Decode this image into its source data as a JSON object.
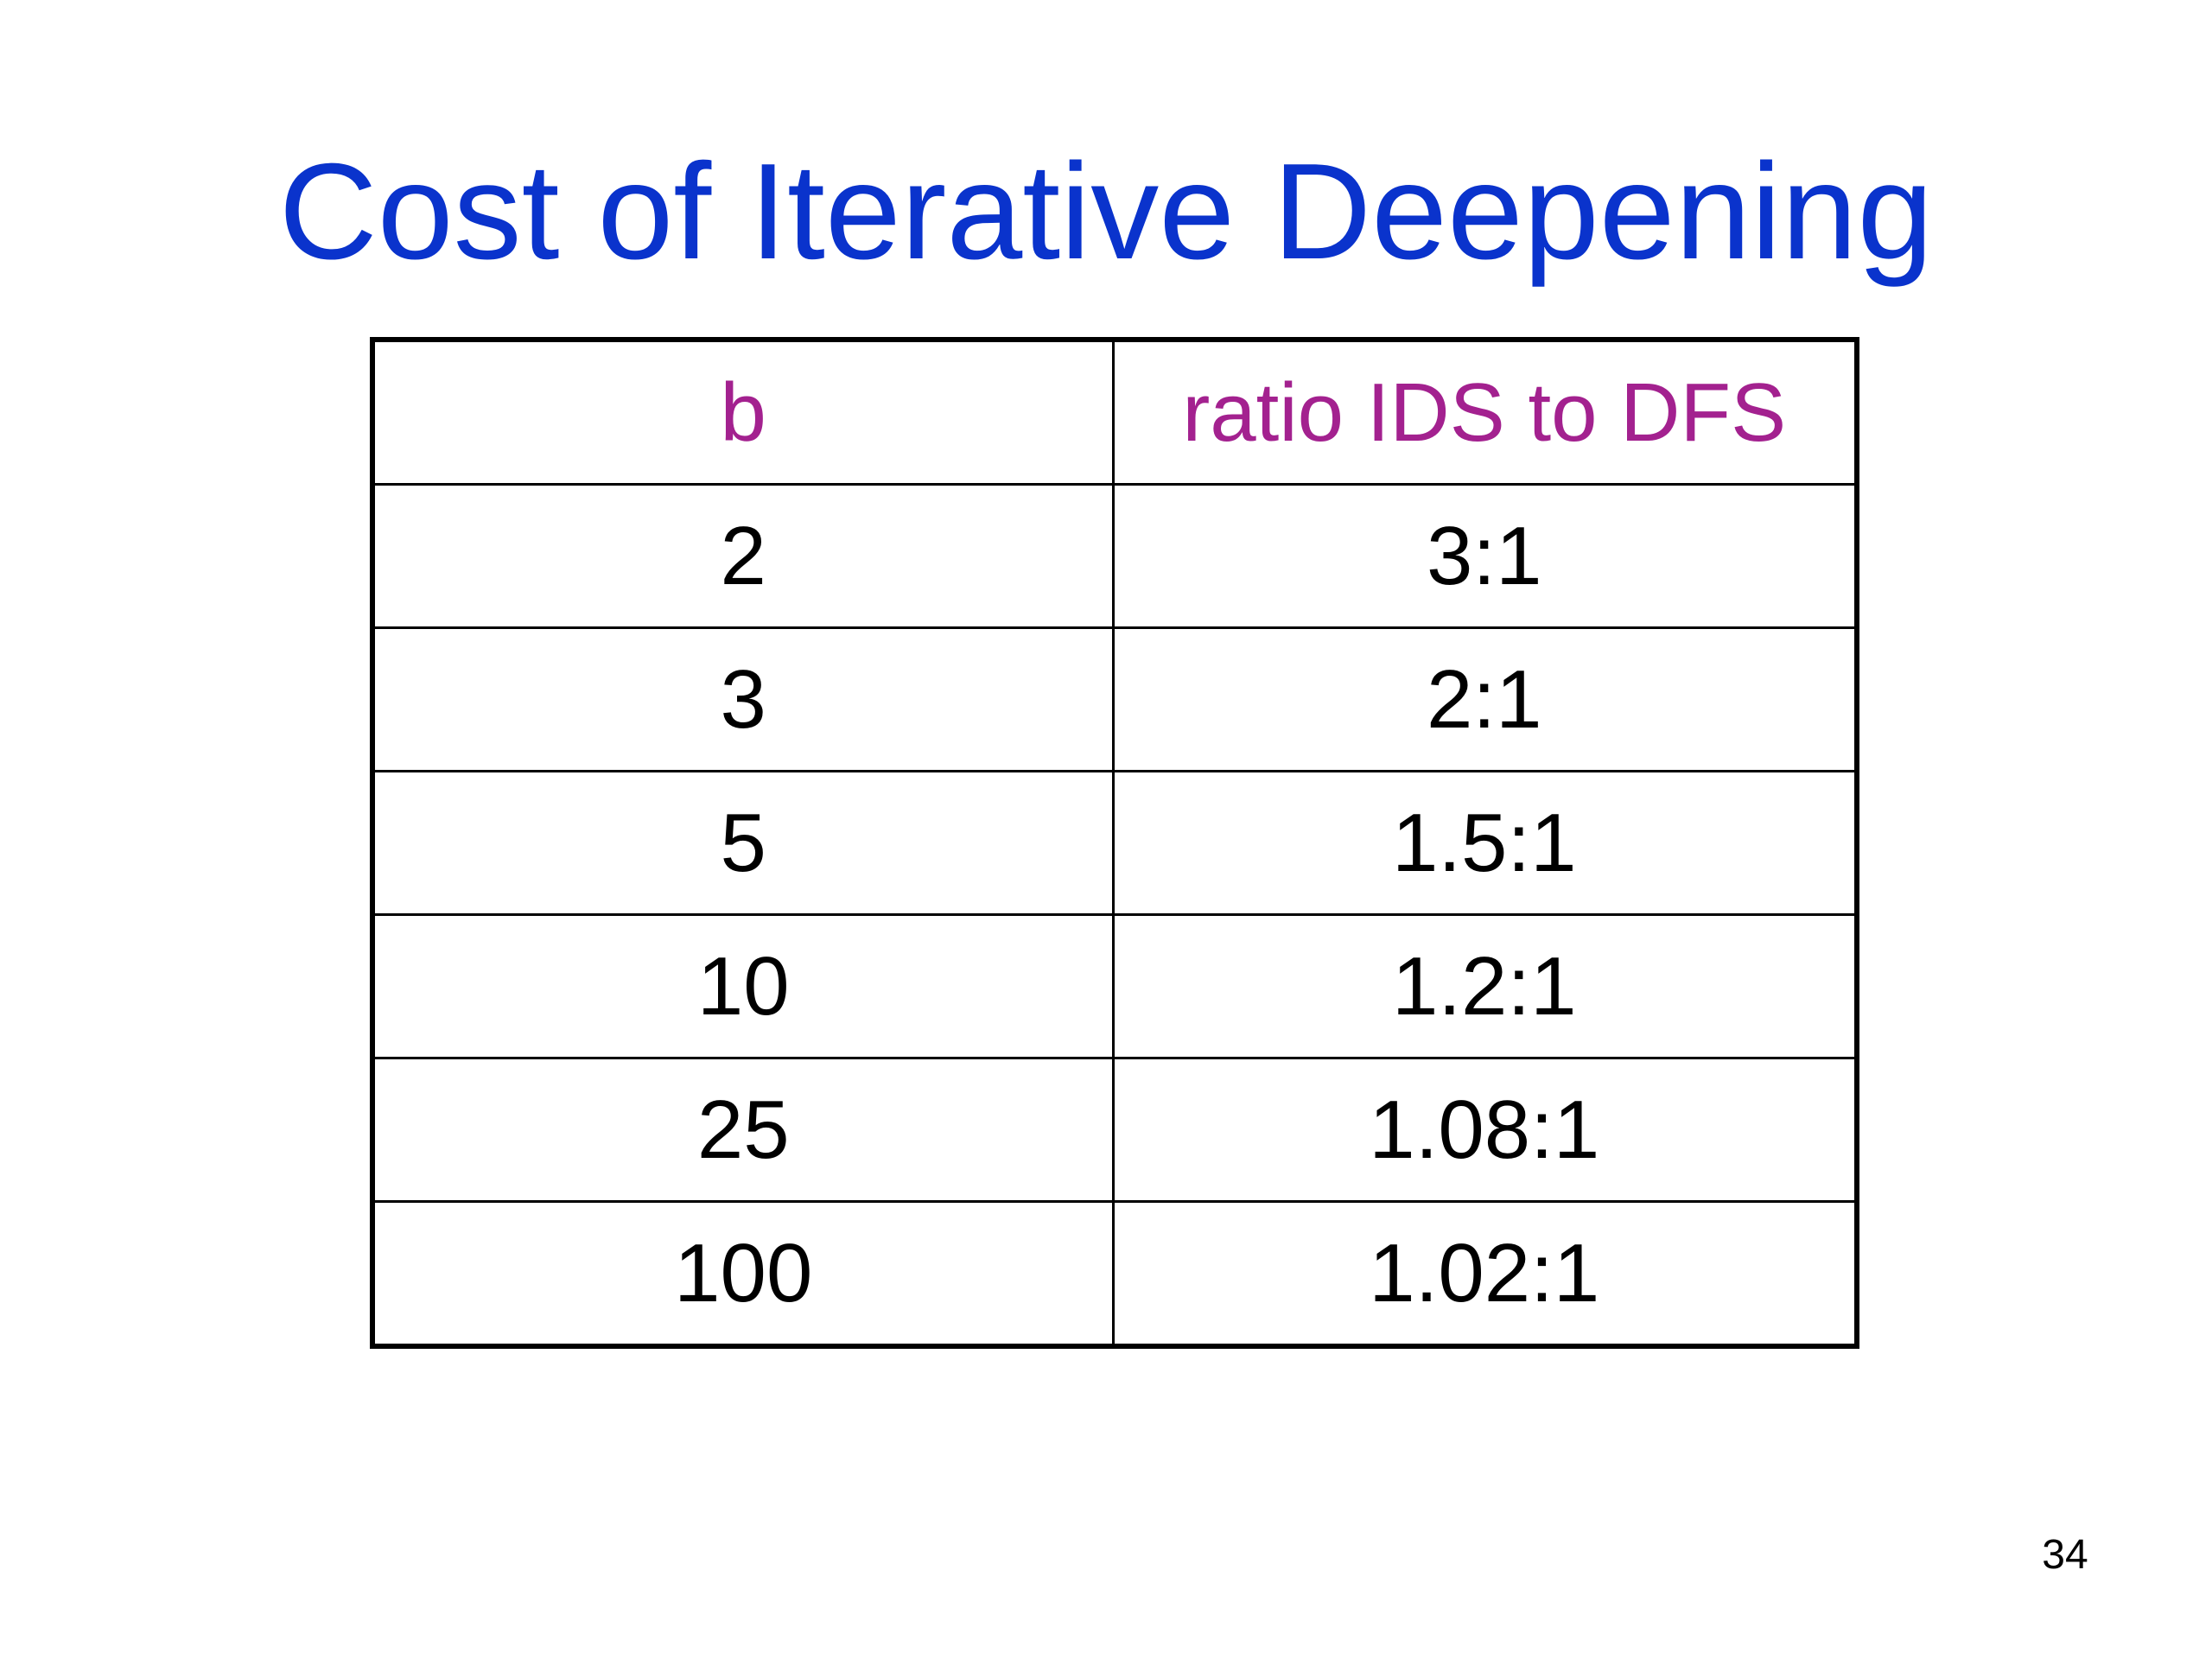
{
  "slide": {
    "title": "Cost of Iterative Deepening",
    "page_number": "34",
    "title_color": "#0a33cc",
    "header_color": "#a3218f"
  },
  "table": {
    "headers": [
      "b",
      "ratio IDS to DFS"
    ],
    "rows": [
      [
        "2",
        "3:1"
      ],
      [
        "3",
        "2:1"
      ],
      [
        "5",
        "1.5:1"
      ],
      [
        "10",
        "1.2:1"
      ],
      [
        "25",
        "1.08:1"
      ],
      [
        "100",
        "1.02:1"
      ]
    ]
  }
}
